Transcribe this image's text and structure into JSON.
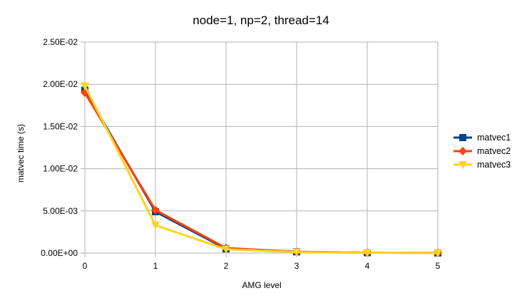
{
  "chart_data": {
    "type": "line",
    "title": "node=1, np=2, thread=14",
    "xlabel": "AMG level",
    "ylabel": "matvec time (s)",
    "x": [
      0,
      1,
      2,
      3,
      4,
      5
    ],
    "ylim": [
      0,
      0.025
    ],
    "yticks": [
      0,
      0.005,
      0.01,
      0.015,
      0.02,
      0.025
    ],
    "ytick_labels": [
      "0.00E+00",
      "5.00E-03",
      "1.00E-02",
      "1.50E-02",
      "2.00E-02",
      "2.50E-02"
    ],
    "xtick_labels": [
      "0",
      "1",
      "2",
      "3",
      "4",
      "5"
    ],
    "grid": "horizontal",
    "legend_position": "right",
    "series": [
      {
        "name": "matvec1",
        "color": "#004586",
        "marker": "square",
        "values": [
          0.0193,
          0.0049,
          0.0005,
          0.00015,
          5e-05,
          2e-05
        ]
      },
      {
        "name": "matvec2",
        "color": "#ff420e",
        "marker": "diamond",
        "values": [
          0.019,
          0.0051,
          0.0006,
          0.00016,
          5e-05,
          2e-05
        ]
      },
      {
        "name": "matvec3",
        "color": "#ffd320",
        "marker": "triangle-down",
        "values": [
          0.0198,
          0.0033,
          0.00045,
          0.00012,
          4e-05,
          1e-05
        ]
      }
    ]
  }
}
